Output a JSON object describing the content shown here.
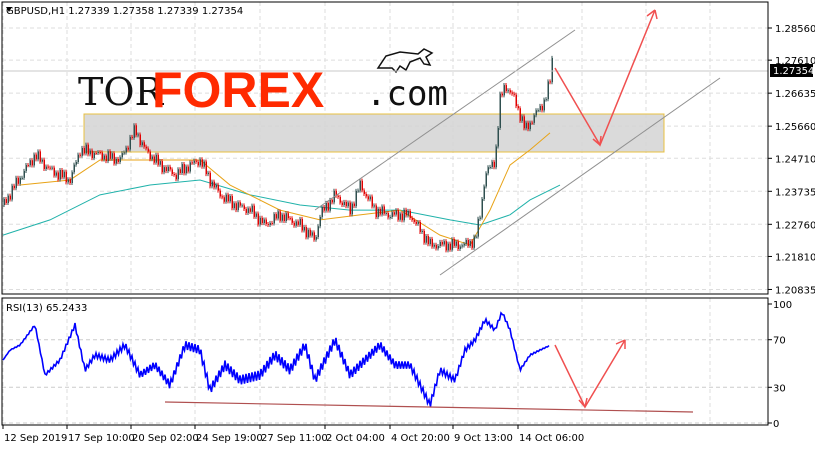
{
  "header": {
    "symbol_info": "GBPUSD,H1  1.27339 1.27358 1.27339 1.27354"
  },
  "logo": {
    "text_a": "TOR",
    "text_b": "FOREX",
    "text_c": ".com"
  },
  "colors": {
    "up": "#2f4f4f",
    "down": "#e00000",
    "ma_fast": "#e8a317",
    "ma_slow": "#20b2aa",
    "rsi": "#0000ff",
    "arrow": "#f05050",
    "zone_fill": "#d3d3d3",
    "zone_border": "#e8c040",
    "channel": "#909090",
    "rsi_trend": "#b05050"
  },
  "chart_data": [
    {
      "type": "line",
      "title": "GBPUSD,H1",
      "current_price": "1.27354",
      "ylim": [
        1.20835,
        1.2954
      ],
      "yticks": [
        "1.28560",
        "1.27610",
        "1.26635",
        "1.25660",
        "1.24710",
        "1.23735",
        "1.22760",
        "1.21810",
        "1.20835"
      ],
      "xticks": [
        "12 Sep 2019",
        "17 Sep 10:00",
        "20 Sep 02:00",
        "24 Sep 19:00",
        "27 Sep 11:00",
        "2 Oct 04:00",
        "4 Oct 20:00",
        "9 Oct 13:00",
        "14 Oct 06:00"
      ],
      "grid": true,
      "series": [
        {
          "role": "price",
          "x": [
            3,
            15,
            35,
            50,
            70,
            80,
            100,
            120,
            135,
            145,
            160,
            175,
            190,
            200,
            210,
            220,
            235,
            250,
            265,
            280,
            300,
            315,
            320,
            335,
            350,
            360,
            375,
            390,
            410,
            420,
            430,
            450,
            465,
            475,
            480,
            485,
            495,
            500,
            505,
            515,
            525,
            535,
            545,
            550,
            552
          ],
          "values": [
            1.2333,
            1.2392,
            1.2481,
            1.2436,
            1.2407,
            1.2496,
            1.2481,
            1.2466,
            1.2555,
            1.2496,
            1.2451,
            1.2422,
            1.2451,
            1.2466,
            1.2407,
            1.2363,
            1.2333,
            1.2318,
            1.2274,
            1.2304,
            1.2274,
            1.223,
            1.2304,
            1.2363,
            1.2318,
            1.2392,
            1.2318,
            1.2304,
            1.2304,
            1.2259,
            1.2215,
            1.2215,
            1.2215,
            1.223,
            1.2304,
            1.2422,
            1.2466,
            1.2643,
            1.2688,
            1.2643,
            1.2555,
            1.2599,
            1.2643,
            1.2702,
            1.2761
          ]
        },
        {
          "role": "ma_fast",
          "x": [
            20,
            70,
            100,
            150,
            200,
            230,
            280,
            320,
            360,
            400,
            440,
            470,
            490,
            510,
            530,
            550
          ],
          "values": [
            1.2392,
            1.2407,
            1.2466,
            1.2466,
            1.2466,
            1.2392,
            1.2318,
            1.2289,
            1.2304,
            1.2318,
            1.2244,
            1.2215,
            1.2318,
            1.2451,
            1.2496,
            1.2546
          ]
        },
        {
          "role": "ma_slow",
          "x": [
            3,
            50,
            100,
            150,
            200,
            250,
            300,
            350,
            400,
            450,
            480,
            510,
            530,
            560
          ],
          "values": [
            1.2244,
            1.2289,
            1.2363,
            1.2392,
            1.2407,
            1.2363,
            1.2333,
            1.2318,
            1.2318,
            1.2289,
            1.2274,
            1.2304,
            1.2348,
            1.2392
          ]
        }
      ]
    },
    {
      "type": "line",
      "title": "RSI(13) 65.2433",
      "ylim": [
        0,
        100
      ],
      "yticks": [
        "100",
        "70",
        "30",
        "0"
      ],
      "series": [
        {
          "role": "rsi",
          "x": [
            3,
            10,
            20,
            35,
            45,
            60,
            75,
            85,
            95,
            110,
            125,
            140,
            155,
            170,
            185,
            200,
            210,
            225,
            240,
            260,
            275,
            290,
            305,
            315,
            325,
            335,
            350,
            365,
            380,
            395,
            410,
            420,
            430,
            440,
            455,
            465,
            475,
            485,
            495,
            502,
            510,
            520,
            530,
            540,
            550
          ],
          "values": [
            52.9,
            61.3,
            65.5,
            82.4,
            40.3,
            52.9,
            82.4,
            44.5,
            57.1,
            52.9,
            65.5,
            40.3,
            48.7,
            31.9,
            65.5,
            61.3,
            27.7,
            48.7,
            36.1,
            40.3,
            57.1,
            44.5,
            65.5,
            36.1,
            52.9,
            69.7,
            40.3,
            52.9,
            65.5,
            48.7,
            48.7,
            31.9,
            15.1,
            44.5,
            36.1,
            61.3,
            69.7,
            86.6,
            78.2,
            93.3,
            78.2,
            44.5,
            57.1,
            61.3,
            65.2
          ]
        }
      ]
    }
  ]
}
